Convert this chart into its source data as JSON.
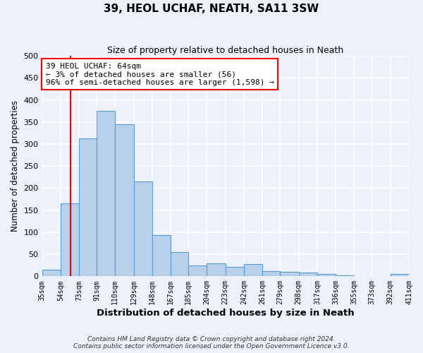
{
  "title": "39, HEOL UCHAF, NEATH, SA11 3SW",
  "subtitle": "Size of property relative to detached houses in Neath",
  "xlabel": "Distribution of detached houses by size in Neath",
  "ylabel": "Number of detached properties",
  "bin_labels": [
    "35sqm",
    "54sqm",
    "73sqm",
    "91sqm",
    "110sqm",
    "129sqm",
    "148sqm",
    "167sqm",
    "185sqm",
    "204sqm",
    "223sqm",
    "242sqm",
    "261sqm",
    "279sqm",
    "298sqm",
    "317sqm",
    "336sqm",
    "355sqm",
    "373sqm",
    "392sqm",
    "411sqm"
  ],
  "bin_edges": [
    35,
    54,
    73,
    91,
    110,
    129,
    148,
    167,
    185,
    204,
    223,
    242,
    261,
    279,
    298,
    317,
    336,
    355,
    373,
    392,
    411
  ],
  "bar_heights": [
    15,
    165,
    313,
    375,
    345,
    215,
    93,
    55,
    25,
    29,
    21,
    27,
    12,
    10,
    9,
    6,
    2,
    1,
    1,
    5
  ],
  "bar_color": "#b8d0ea",
  "bar_edge_color": "#5b9bd5",
  "property_size": 64,
  "property_line_color": "#ff0000",
  "annotation_line1": "39 HEOL UCHAF: 64sqm",
  "annotation_line2": "← 3% of detached houses are smaller (56)",
  "annotation_line3": "96% of semi-detached houses are larger (1,598) →",
  "annotation_box_color": "#ffffff",
  "annotation_box_edge": "#ff0000",
  "ylim": [
    0,
    500
  ],
  "yticks": [
    0,
    50,
    100,
    150,
    200,
    250,
    300,
    350,
    400,
    450,
    500
  ],
  "footer_line1": "Contains HM Land Registry data © Crown copyright and database right 2024.",
  "footer_line2": "Contains public sector information licensed under the Open Government Licence v3.0.",
  "background_color": "#edf1fb",
  "grid_color": "#ffffff",
  "figsize": [
    6.0,
    5.0
  ],
  "dpi": 100
}
